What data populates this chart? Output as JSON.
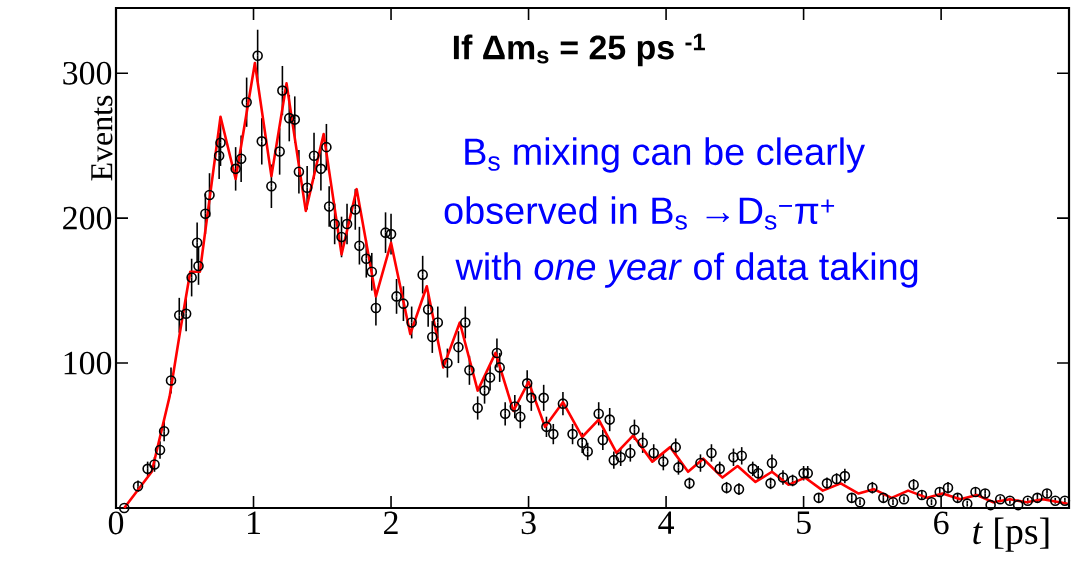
{
  "chart_data": {
    "type": "scatter",
    "xlabel": "*t* [ps]",
    "ylabel": "Events",
    "annotations": [
      "If Δm$_{s}$ = 25 ps $^{-1}$",
      "B$_{s}$ mixing can be clearly",
      "observed in B$_{s}$ →D$_{s}$$^{−}$π$^{+}$",
      " with *one year* of data taking"
    ],
    "xlim": [
      0,
      6.93
    ],
    "ylim": [
      0,
      345
    ],
    "xticks": [
      0,
      1,
      2,
      3,
      4,
      5,
      6
    ],
    "yticks": [
      100,
      200,
      300
    ],
    "series": [
      {
        "color": "#000000",
        "marker": "circle",
        "x": [
          0.06,
          0.16,
          0.23,
          0.28,
          0.32,
          0.35,
          0.4,
          0.46,
          0.51,
          0.55,
          0.59,
          0.6,
          0.65,
          0.68,
          0.75,
          0.76,
          0.87,
          0.91,
          0.95,
          1.03,
          1.06,
          1.13,
          1.19,
          1.21,
          1.26,
          1.3,
          1.33,
          1.39,
          1.44,
          1.49,
          1.53,
          1.55,
          1.59,
          1.64,
          1.68,
          1.74,
          1.77,
          1.82,
          1.86,
          1.89,
          1.96,
          2.0,
          2.04,
          2.09,
          2.15,
          2.23,
          2.27,
          2.3,
          2.34,
          2.41,
          2.49,
          2.54,
          2.57,
          2.63,
          2.68,
          2.72,
          2.77,
          2.79,
          2.83,
          2.9,
          2.94,
          2.99,
          3.02,
          3.11,
          3.13,
          3.18,
          3.25,
          3.32,
          3.39,
          3.43,
          3.51,
          3.54,
          3.59,
          3.62,
          3.67,
          3.74,
          3.77,
          3.83,
          3.91,
          3.98,
          4.07,
          4.09,
          4.17,
          4.25,
          4.33,
          4.39,
          4.44,
          4.49,
          4.53,
          4.55,
          4.63,
          4.67,
          4.76,
          4.77,
          4.85,
          4.92,
          5.0,
          5.03,
          5.11,
          5.17,
          5.24,
          5.3,
          5.35,
          5.41,
          5.5,
          5.58,
          5.65,
          5.73,
          5.8,
          5.86,
          5.93,
          5.99,
          6.05,
          6.12,
          6.19,
          6.25,
          6.32,
          6.36,
          6.43,
          6.5,
          6.56,
          6.63,
          6.7,
          6.77,
          6.83,
          6.9
        ],
        "values": [
          0,
          15,
          27,
          30,
          40,
          53,
          88,
          133,
          134,
          159,
          183,
          167,
          203,
          216,
          243,
          252,
          234,
          241,
          280,
          312,
          253,
          222,
          246,
          288,
          269,
          268,
          232,
          221,
          243,
          234,
          249,
          208,
          196,
          187,
          196,
          206,
          181,
          172,
          163,
          138,
          190,
          189,
          146,
          141,
          128,
          161,
          137,
          118,
          128,
          100,
          111,
          128,
          95,
          69,
          81,
          90,
          107,
          97,
          65,
          70,
          63,
          86,
          76,
          76,
          56,
          51,
          72,
          51,
          45,
          39,
          65,
          47,
          61,
          33,
          35,
          38,
          54,
          45,
          38,
          32,
          42,
          28,
          17,
          31,
          38,
          27,
          14,
          35,
          13,
          36,
          27,
          24,
          17,
          31,
          21,
          19,
          24,
          24,
          7,
          17,
          20,
          22,
          7,
          4,
          14,
          7,
          4,
          6,
          16,
          9,
          4,
          11,
          14,
          7,
          3,
          11,
          10,
          2,
          6,
          5,
          2,
          5,
          7,
          10,
          5,
          5
        ],
        "errors": [
          null,
          4,
          5,
          5,
          6,
          7,
          9,
          12,
          12,
          13,
          14,
          13,
          14,
          15,
          16,
          16,
          15,
          16,
          17,
          18,
          16,
          15,
          16,
          17,
          16,
          16,
          15,
          15,
          16,
          15,
          16,
          14,
          14,
          14,
          14,
          14,
          13,
          13,
          13,
          12,
          14,
          14,
          12,
          12,
          11,
          13,
          12,
          11,
          11,
          10,
          11,
          11,
          10,
          8,
          9,
          9,
          10,
          10,
          8,
          8,
          8,
          9,
          9,
          9,
          7,
          7,
          8,
          7,
          7,
          6,
          8,
          7,
          8,
          6,
          6,
          6,
          7,
          7,
          6,
          6,
          6,
          5,
          4,
          6,
          6,
          5,
          4,
          6,
          4,
          6,
          5,
          5,
          4,
          6,
          5,
          4,
          5,
          5,
          3,
          4,
          4,
          5,
          3,
          2,
          4,
          3,
          2,
          2,
          4,
          3,
          2,
          3,
          4,
          3,
          2,
          3,
          3,
          null,
          2,
          2,
          null,
          2,
          3,
          3,
          2,
          2
        ]
      },
      {
        "type": "line",
        "color": "#ff0000",
        "marker": "none",
        "line_style": "solid",
        "x": [
          0.06,
          0.26,
          0.39,
          0.47,
          0.54,
          0.61,
          0.76,
          0.87,
          1.01,
          1.13,
          1.24,
          1.38,
          1.51,
          1.64,
          1.75,
          1.89,
          2.0,
          2.14,
          2.26,
          2.38,
          2.5,
          2.63,
          2.76,
          2.89,
          3.0,
          3.12,
          3.25,
          3.39,
          3.51,
          3.64,
          3.76,
          3.9,
          4.03,
          4.16,
          4.27,
          4.41,
          4.52,
          4.65,
          4.77,
          4.89,
          5.01,
          5.14,
          5.27,
          5.4,
          5.51,
          5.64,
          5.76,
          5.9,
          6.01,
          6.14,
          6.26,
          6.38,
          6.5,
          6.62,
          6.74,
          6.92
        ],
        "values": [
          0,
          25,
          77,
          124,
          163,
          163,
          270,
          227,
          307,
          229,
          293,
          205,
          258,
          175,
          220,
          146,
          183,
          120,
          153,
          97,
          128,
          81,
          107,
          67,
          87,
          56,
          73,
          49,
          61,
          38,
          50,
          32,
          42,
          25,
          34,
          21,
          29,
          18,
          25,
          16,
          21,
          12,
          17,
          10,
          13,
          7,
          12,
          7,
          10,
          6,
          9,
          4,
          6,
          4,
          6,
          3
        ]
      }
    ]
  }
}
